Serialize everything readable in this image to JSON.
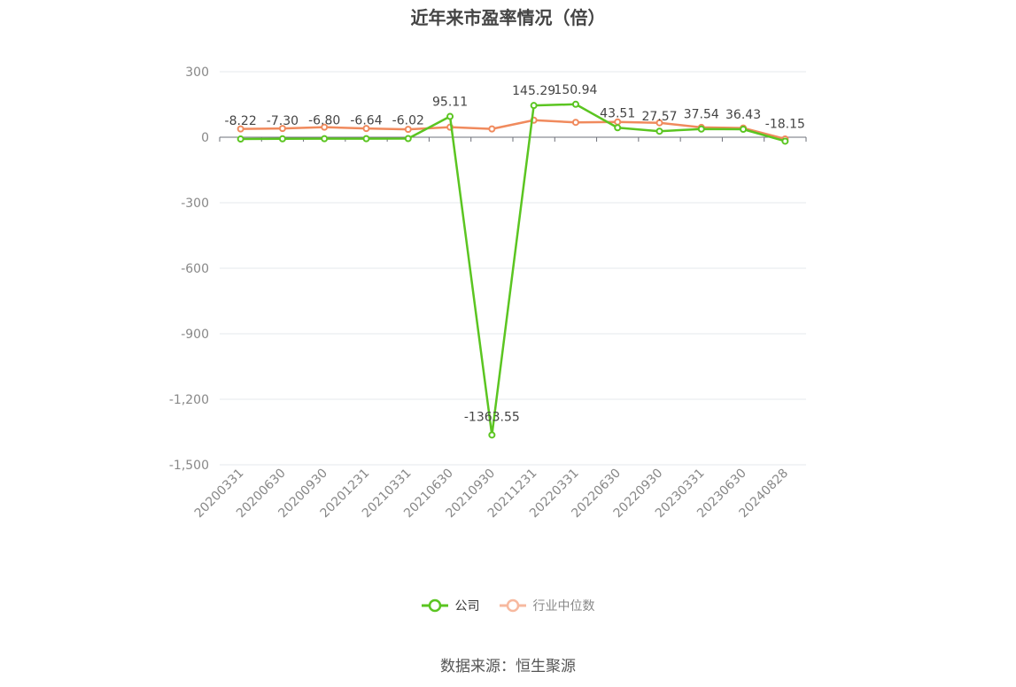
{
  "title": "近年来市盈率情况（倍）",
  "source": "数据来源：恒生聚源",
  "chart_data": {
    "type": "line",
    "categories": [
      "20200331",
      "20200630",
      "20200930",
      "20201231",
      "20210331",
      "20210630",
      "20210930",
      "20211231",
      "20220331",
      "20220630",
      "20220930",
      "20230331",
      "20230630",
      "20240828"
    ],
    "ylim": [
      -1500,
      300
    ],
    "yticks": [
      300,
      0,
      -300,
      -600,
      -900,
      -1200,
      -1500
    ],
    "ytick_labels": [
      "300",
      "0",
      "-300",
      "-600",
      "-900",
      "-1,200",
      "-1,500"
    ],
    "grid": true,
    "legend_position": "bottom-center",
    "series": [
      {
        "name": "公司",
        "color": "#5bc521",
        "values": [
          -8.22,
          -7.3,
          -6.8,
          -6.64,
          -6.02,
          95.11,
          -1363.55,
          145.29,
          150.94,
          43.51,
          27.57,
          37.54,
          36.43,
          -18.15
        ],
        "labels": [
          "-8.22",
          "-7.30",
          "-6.80",
          "-6.64",
          "-6.02",
          "95.11",
          "-1363.55",
          "145.29",
          "150.94",
          "43.51",
          "27.57",
          "37.54",
          "36.43",
          "-18.15"
        ]
      },
      {
        "name": "行业中位数",
        "color": "#f08a5d",
        "values": [
          38,
          40,
          46,
          40,
          36,
          46,
          38,
          78,
          68,
          70,
          66,
          45,
          42,
          -8
        ]
      }
    ]
  }
}
